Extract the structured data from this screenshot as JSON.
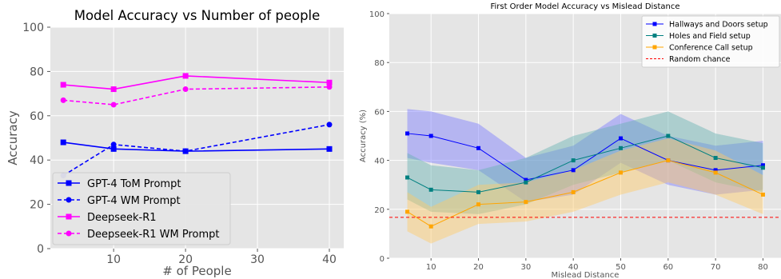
{
  "chart_data": [
    {
      "type": "line",
      "title": "Model Accuracy vs Number of people",
      "xlabel": "# of People",
      "ylabel": "Accuracy",
      "xlim": [
        1.2,
        42
      ],
      "ylim": [
        0,
        100
      ],
      "x_ticks": [
        10,
        20,
        30,
        40
      ],
      "y_ticks": [
        0,
        20,
        40,
        60,
        80,
        100
      ],
      "grid": true,
      "legend_position": "bottom-left",
      "series": [
        {
          "name": "GPT-4 ToM Prompt",
          "color": "#0000ff",
          "style": "solid",
          "marker": "square",
          "x": [
            3,
            10,
            20,
            40
          ],
          "y": [
            48,
            45,
            44,
            45
          ]
        },
        {
          "name": "GPT-4 WM Prompt",
          "color": "#0000ff",
          "style": "dashed",
          "marker": "circle",
          "x": [
            3,
            10,
            20,
            40
          ],
          "y": [
            33,
            47,
            44,
            56
          ]
        },
        {
          "name": "Deepseek-R1",
          "color": "#ff00ff",
          "style": "solid",
          "marker": "square",
          "x": [
            3,
            10,
            20,
            40
          ],
          "y": [
            74,
            72,
            78,
            75
          ]
        },
        {
          "name": "Deepseek-R1 WM Prompt",
          "color": "#ff00ff",
          "style": "dashed",
          "marker": "circle",
          "x": [
            3,
            10,
            20,
            40
          ],
          "y": [
            67,
            65,
            72,
            73
          ]
        }
      ]
    },
    {
      "type": "line",
      "title": "First Order Model Accuracy vs Mislead Distance",
      "xlabel": "Mislead Distance",
      "ylabel": "Accuracy (%)",
      "xlim": [
        1.2,
        83.8
      ],
      "ylim": [
        0,
        100
      ],
      "x_ticks": [
        10,
        20,
        30,
        40,
        50,
        60,
        70,
        80
      ],
      "y_ticks": [
        0,
        20,
        40,
        60,
        80,
        100
      ],
      "grid": true,
      "legend_position": "top-right",
      "x": [
        5,
        10,
        20,
        30,
        40,
        50,
        60,
        70,
        80
      ],
      "series": [
        {
          "name": "Hallways and Doors setup",
          "color": "#0000ff",
          "band_color": "#7b7bff",
          "marker": "square",
          "y": [
            51,
            50,
            45,
            32,
            36,
            49,
            40,
            36,
            38
          ],
          "lower": [
            41,
            39,
            36,
            23,
            26,
            39,
            30,
            26,
            28
          ],
          "upper": [
            61,
            60,
            55,
            41,
            46,
            59,
            50,
            46,
            48
          ]
        },
        {
          "name": "Holes and Field setup",
          "color": "#008080",
          "band_color": "#66b2b2",
          "marker": "square",
          "y": [
            33,
            28,
            27,
            31,
            40,
            45,
            50,
            41,
            37
          ],
          "lower": [
            24,
            19,
            18,
            22,
            30,
            35,
            40,
            31,
            27
          ],
          "upper": [
            43,
            38,
            36,
            41,
            50,
            55,
            60,
            51,
            47
          ]
        },
        {
          "name": "Conference Call setup",
          "color": "#ffa500",
          "band_color": "#ffc966",
          "marker": "square",
          "y": [
            19,
            13,
            22,
            23,
            27,
            35,
            40,
            35,
            26
          ],
          "lower": [
            11,
            6,
            14,
            15,
            19,
            26,
            31,
            26,
            18
          ],
          "upper": [
            27,
            21,
            30,
            31,
            36,
            44,
            49,
            44,
            34
          ]
        },
        {
          "name": "Random chance",
          "color": "#ff0000",
          "style": "dashed",
          "constant": 16.7
        }
      ]
    }
  ]
}
